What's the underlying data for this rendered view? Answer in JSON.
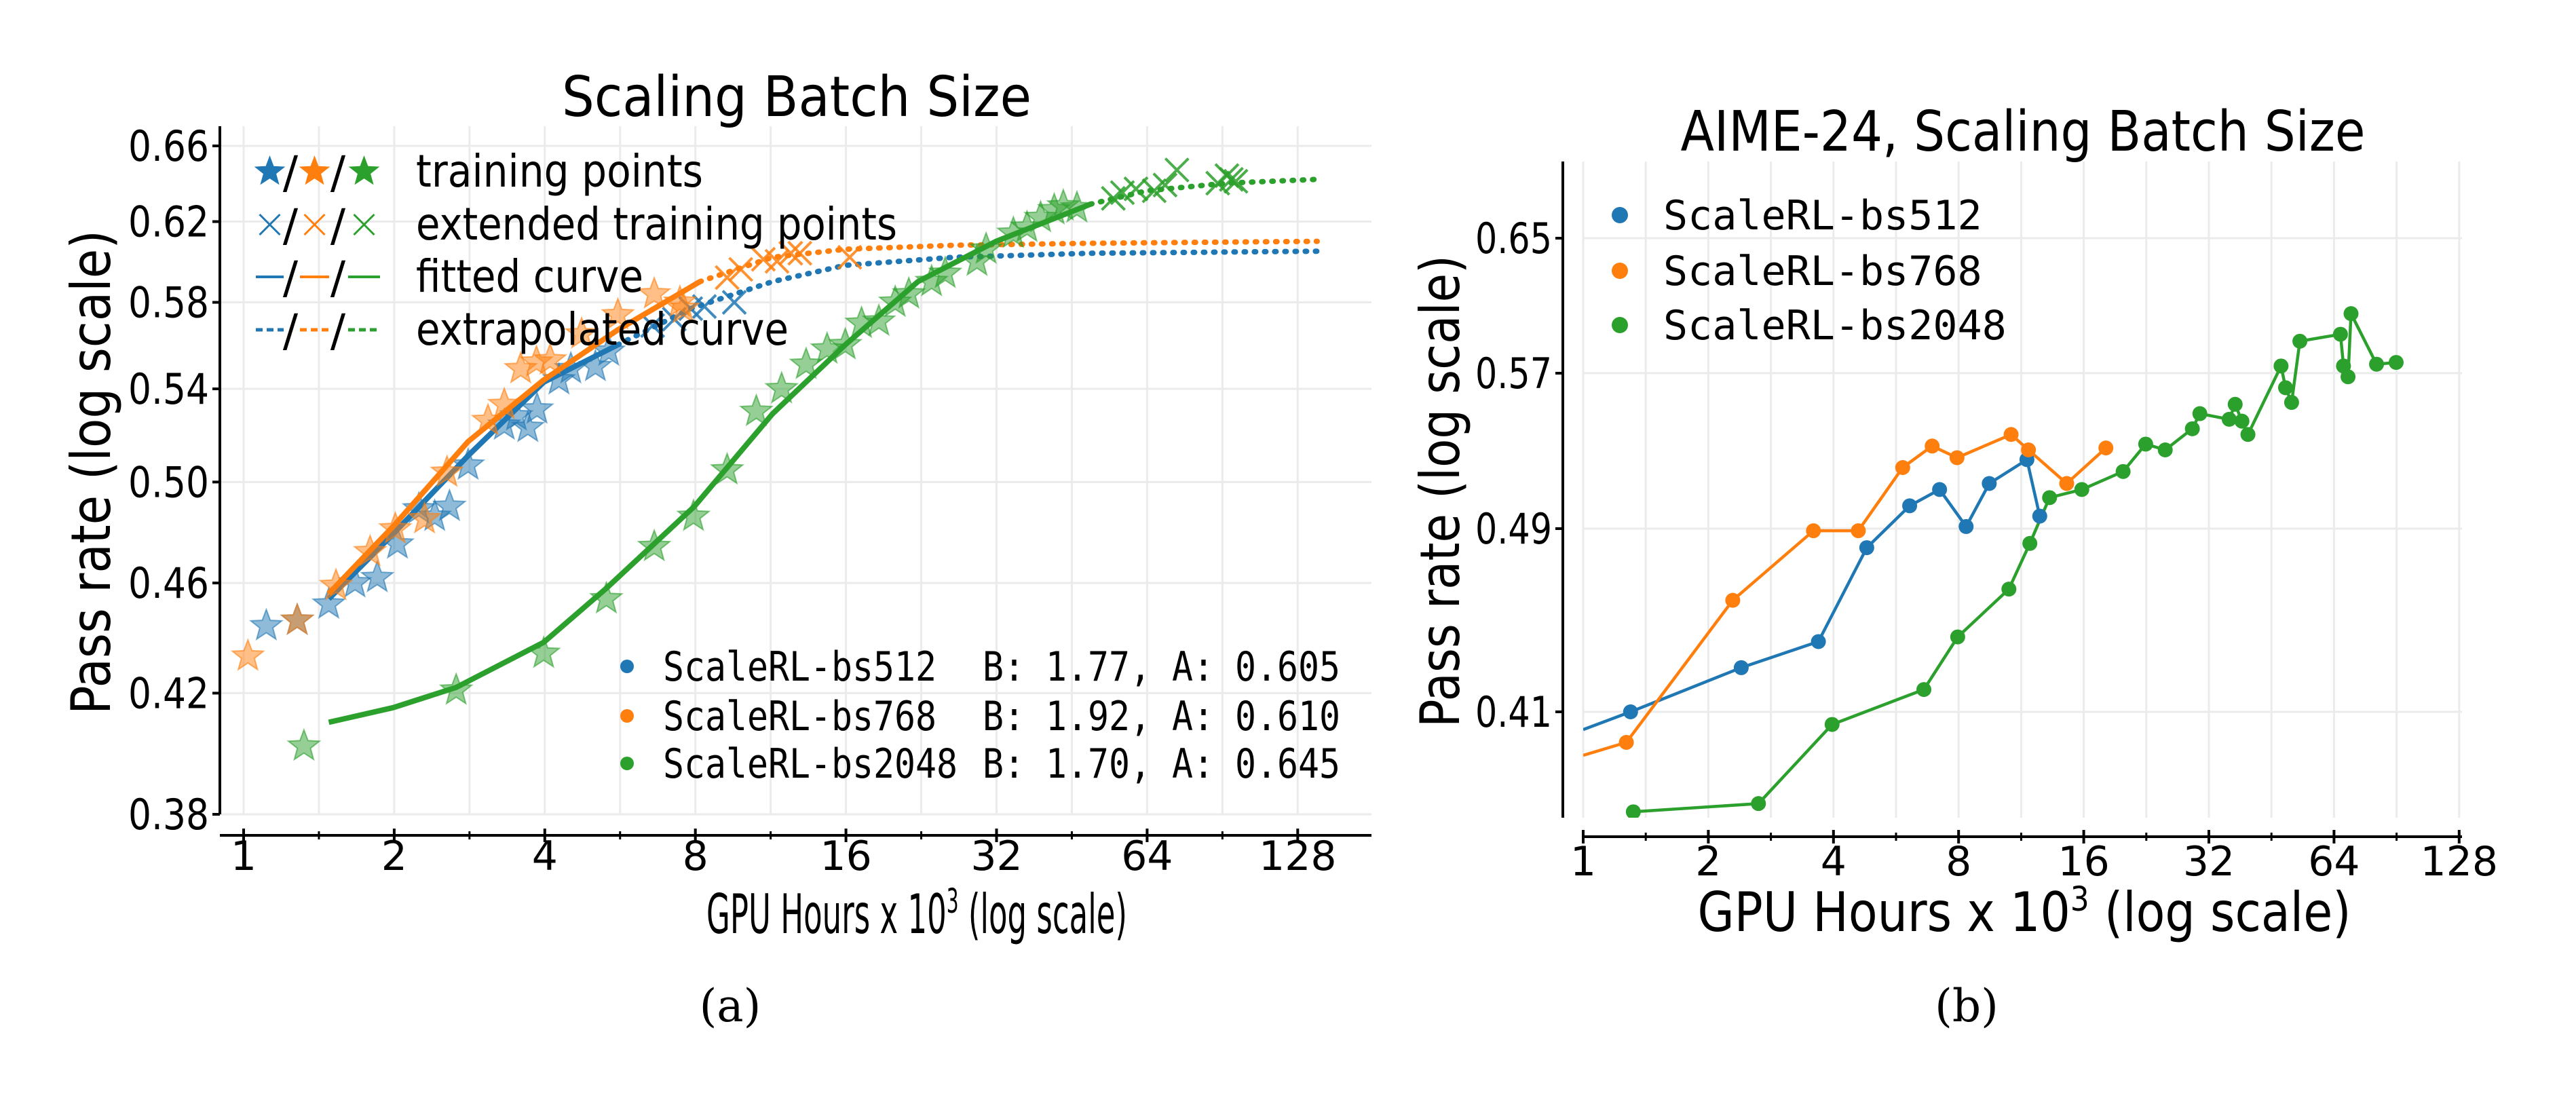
{
  "colors": {
    "bs512": "#1f77b4",
    "bs768": "#ff7f0e",
    "bs2048": "#2ca02c",
    "grid": "#ebebeb"
  },
  "panel_labels": [
    "(a)",
    "(b)"
  ],
  "chart_data": [
    {
      "type": "scatter",
      "title": "Scaling Batch Size",
      "xlabel": {
        "main": "GPU Hours x 10",
        "sup": "3",
        "tail": " (log scale)"
      },
      "ylabel": "Pass rate (log scale)",
      "xscale": "log",
      "yscale": "log",
      "xlim": [
        0.9,
        180
      ],
      "ylim": [
        0.38,
        0.67
      ],
      "xticks": [
        1,
        2,
        4,
        8,
        16,
        32,
        64,
        128
      ],
      "xtick_labels": [
        "1",
        "2",
        "4",
        "8",
        "16",
        "32",
        "64",
        "128"
      ],
      "yticks": [
        0.38,
        0.42,
        0.46,
        0.5,
        0.54,
        0.58,
        0.62,
        0.66
      ],
      "ytick_labels": [
        "0.38",
        "0.42",
        "0.46",
        "0.50",
        "0.54",
        "0.58",
        "0.62",
        "0.66"
      ],
      "grid": true,
      "marker_legend": {
        "placement": "upper-left",
        "separator": "/",
        "entries": [
          {
            "label": "training points",
            "marker": "star"
          },
          {
            "label": "extended training points",
            "marker": "x"
          },
          {
            "label": "fitted curve",
            "marker": "solid-line"
          },
          {
            "label": "extrapolated curve",
            "marker": "dashed-line"
          }
        ]
      },
      "series_legend_placement": "lower-right",
      "series": [
        {
          "name": "ScaleRL-bs512",
          "color_key": "bs512",
          "B": 1.77,
          "A": 0.605,
          "params_label": "B: 1.77, A: 0.605",
          "training_points": [
            [
              1.11,
              0.444
            ],
            [
              1.28,
              0.446
            ],
            [
              1.48,
              0.452
            ],
            [
              1.67,
              0.46
            ],
            [
              1.85,
              0.462
            ],
            [
              2.03,
              0.475
            ],
            [
              2.24,
              0.489
            ],
            [
              2.41,
              0.486
            ],
            [
              2.58,
              0.49
            ],
            [
              2.81,
              0.507
            ],
            [
              3.32,
              0.524
            ],
            [
              3.51,
              0.528
            ],
            [
              3.7,
              0.523
            ],
            [
              3.86,
              0.531
            ],
            [
              4.27,
              0.544
            ],
            [
              4.51,
              0.549
            ],
            [
              5.05,
              0.55
            ],
            [
              5.37,
              0.557
            ]
          ],
          "extended_points": [
            [
              6.57,
              0.569
            ],
            [
              7.26,
              0.572
            ],
            [
              7.83,
              0.577
            ],
            [
              8.34,
              0.578
            ],
            [
              9.57,
              0.58
            ]
          ],
          "fitted_curve": [
            [
              1.48,
              0.454
            ],
            [
              1.99,
              0.479
            ],
            [
              2.81,
              0.511
            ],
            [
              3.98,
              0.543
            ],
            [
              5.6,
              0.56
            ]
          ],
          "extrapolated_curve": [
            [
              5.6,
              0.56
            ],
            [
              7.83,
              0.577
            ],
            [
              11.41,
              0.59
            ],
            [
              15.95,
              0.598
            ],
            [
              26.35,
              0.602
            ],
            [
              49.34,
              0.604
            ],
            [
              140,
              0.605
            ]
          ]
        },
        {
          "name": "ScaleRL-bs768",
          "color_key": "bs768",
          "B": 1.92,
          "A": 0.61,
          "params_label": "B: 1.92, A: 0.610",
          "training_points": [
            [
              1.02,
              0.433
            ],
            [
              1.28,
              0.446
            ],
            [
              1.53,
              0.459
            ],
            [
              1.79,
              0.472
            ],
            [
              2.01,
              0.481
            ],
            [
              2.3,
              0.485
            ],
            [
              2.55,
              0.504
            ],
            [
              3.08,
              0.526
            ],
            [
              3.32,
              0.533
            ],
            [
              3.58,
              0.549
            ],
            [
              3.85,
              0.552
            ],
            [
              4.1,
              0.553
            ],
            [
              4.74,
              0.565
            ],
            [
              5.6,
              0.574
            ],
            [
              6.62,
              0.584
            ],
            [
              7.45,
              0.58
            ],
            [
              7.57,
              0.577
            ]
          ],
          "extended_points": [
            [
              9.26,
              0.592
            ],
            [
              9.86,
              0.596
            ],
            [
              10.94,
              0.601
            ],
            [
              11.65,
              0.6
            ],
            [
              12.41,
              0.604
            ],
            [
              12.94,
              0.604
            ],
            [
              16.28,
              0.602
            ]
          ],
          "fitted_curve": [
            [
              1.48,
              0.456
            ],
            [
              1.99,
              0.482
            ],
            [
              2.81,
              0.517
            ],
            [
              3.98,
              0.544
            ],
            [
              5.6,
              0.567
            ],
            [
              8.17,
              0.59
            ]
          ],
          "extrapolated_curve": [
            [
              8.17,
              0.59
            ],
            [
              11.41,
              0.602
            ],
            [
              15.95,
              0.606
            ],
            [
              26.35,
              0.608
            ],
            [
              49.34,
              0.609
            ],
            [
              140,
              0.61
            ]
          ]
        },
        {
          "name": "ScaleRL-bs2048",
          "color_key": "bs2048",
          "B": 1.7,
          "A": 0.645,
          "params_label": "B: 1.70, A: 0.645",
          "training_points": [
            [
              1.32,
              0.402
            ],
            [
              2.66,
              0.421
            ],
            [
              3.98,
              0.434
            ],
            [
              5.31,
              0.454
            ],
            [
              6.62,
              0.474
            ],
            [
              7.93,
              0.486
            ],
            [
              9.26,
              0.505
            ],
            [
              10.59,
              0.53
            ],
            [
              11.9,
              0.54
            ],
            [
              13.32,
              0.551
            ],
            [
              14.67,
              0.558
            ],
            [
              15.95,
              0.56
            ],
            [
              17.19,
              0.57
            ],
            [
              18.62,
              0.571
            ],
            [
              20.07,
              0.58
            ],
            [
              21.37,
              0.584
            ],
            [
              23.73,
              0.59
            ],
            [
              25.27,
              0.594
            ],
            [
              29.25,
              0.6
            ],
            [
              30.5,
              0.606
            ],
            [
              34.58,
              0.614
            ],
            [
              36.82,
              0.617
            ],
            [
              39.2,
              0.622
            ],
            [
              41.73,
              0.626
            ],
            [
              43.52,
              0.628
            ],
            [
              46.33,
              0.627
            ]
          ],
          "extended_points": [
            [
              54.78,
              0.632
            ],
            [
              57.12,
              0.635
            ],
            [
              60.8,
              0.637
            ],
            [
              66.12,
              0.636
            ],
            [
              69.51,
              0.639
            ],
            [
              73.41,
              0.647
            ],
            [
              88.6,
              0.64
            ],
            [
              92.4,
              0.644
            ],
            [
              94.3,
              0.642
            ],
            [
              96.3,
              0.641
            ]
          ],
          "fitted_curve": [
            [
              1.48,
              0.41
            ],
            [
              1.99,
              0.415
            ],
            [
              2.66,
              0.422
            ],
            [
              3.98,
              0.438
            ],
            [
              5.31,
              0.458
            ],
            [
              7.96,
              0.49
            ],
            [
              11.41,
              0.529
            ],
            [
              15.95,
              0.56
            ],
            [
              22.29,
              0.59
            ],
            [
              31.94,
              0.61
            ],
            [
              49.34,
              0.629
            ]
          ],
          "extrapolated_curve": [
            [
              49.34,
              0.629
            ],
            [
              63.94,
              0.636
            ],
            [
              92.4,
              0.64
            ],
            [
              140,
              0.642
            ]
          ]
        }
      ]
    },
    {
      "type": "line",
      "title": "AIME-24, Scaling Batch Size",
      "xlabel": {
        "main": "GPU Hours x 10",
        "sup": "3",
        "tail": " (log scale)"
      },
      "ylabel": "Pass rate (log scale)",
      "xscale": "log",
      "yscale": "log",
      "xlim": [
        1,
        128
      ],
      "ylim": [
        0.37,
        0.7
      ],
      "xticks": [
        1,
        2,
        4,
        8,
        16,
        32,
        64,
        128
      ],
      "xtick_labels": [
        "1",
        "2",
        "4",
        "8",
        "16",
        "32",
        "64",
        "128"
      ],
      "yticks": [
        0.41,
        0.49,
        0.57,
        0.65
      ],
      "ytick_labels": [
        "0.41",
        "0.49",
        "0.57",
        "0.65"
      ],
      "grid": true,
      "legend_placement": "upper-left",
      "series": [
        {
          "name": "ScaleRL-bs512",
          "color_key": "bs512",
          "line_from_left_edge": [
            1,
            0.403
          ],
          "points": [
            [
              1.3,
              0.41
            ],
            [
              2.4,
              0.428
            ],
            [
              3.68,
              0.439
            ],
            [
              4.81,
              0.481
            ],
            [
              6.1,
              0.501
            ],
            [
              7.2,
              0.509
            ],
            [
              8.34,
              0.491
            ],
            [
              9.48,
              0.512
            ],
            [
              11.68,
              0.524
            ],
            [
              12.54,
              0.496
            ]
          ]
        },
        {
          "name": "ScaleRL-bs768",
          "color_key": "bs768",
          "line_from_left_edge": [
            1,
            0.393
          ],
          "points": [
            [
              1.27,
              0.398
            ],
            [
              2.29,
              0.457
            ],
            [
              3.58,
              0.489
            ],
            [
              4.59,
              0.489
            ],
            [
              5.87,
              0.52
            ],
            [
              6.91,
              0.531
            ],
            [
              7.93,
              0.525
            ],
            [
              10.7,
              0.537
            ],
            [
              11.78,
              0.529
            ],
            [
              14.56,
              0.512
            ],
            [
              18.09,
              0.53
            ]
          ]
        },
        {
          "name": "ScaleRL-bs2048",
          "color_key": "bs2048",
          "points": [
            [
              1.32,
              0.372
            ],
            [
              2.64,
              0.375
            ],
            [
              3.97,
              0.405
            ],
            [
              6.6,
              0.419
            ],
            [
              7.96,
              0.441
            ],
            [
              10.57,
              0.462
            ],
            [
              11.87,
              0.483
            ],
            [
              13.24,
              0.505
            ],
            [
              15.83,
              0.509
            ],
            [
              19.9,
              0.518
            ],
            [
              22.55,
              0.532
            ],
            [
              25.13,
              0.529
            ],
            [
              29.2,
              0.54
            ],
            [
              30.44,
              0.548
            ],
            [
              35.81,
              0.545
            ],
            [
              37.02,
              0.553
            ],
            [
              38.43,
              0.544
            ],
            [
              39.73,
              0.537
            ],
            [
              47.73,
              0.574
            ],
            [
              48.93,
              0.562
            ],
            [
              50.6,
              0.554
            ],
            [
              52.97,
              0.588
            ],
            [
              66.33,
              0.592
            ],
            [
              67.45,
              0.574
            ],
            [
              69.17,
              0.568
            ],
            [
              70.33,
              0.604
            ],
            [
              81.0,
              0.575
            ],
            [
              90.3,
              0.576
            ]
          ]
        }
      ]
    }
  ]
}
